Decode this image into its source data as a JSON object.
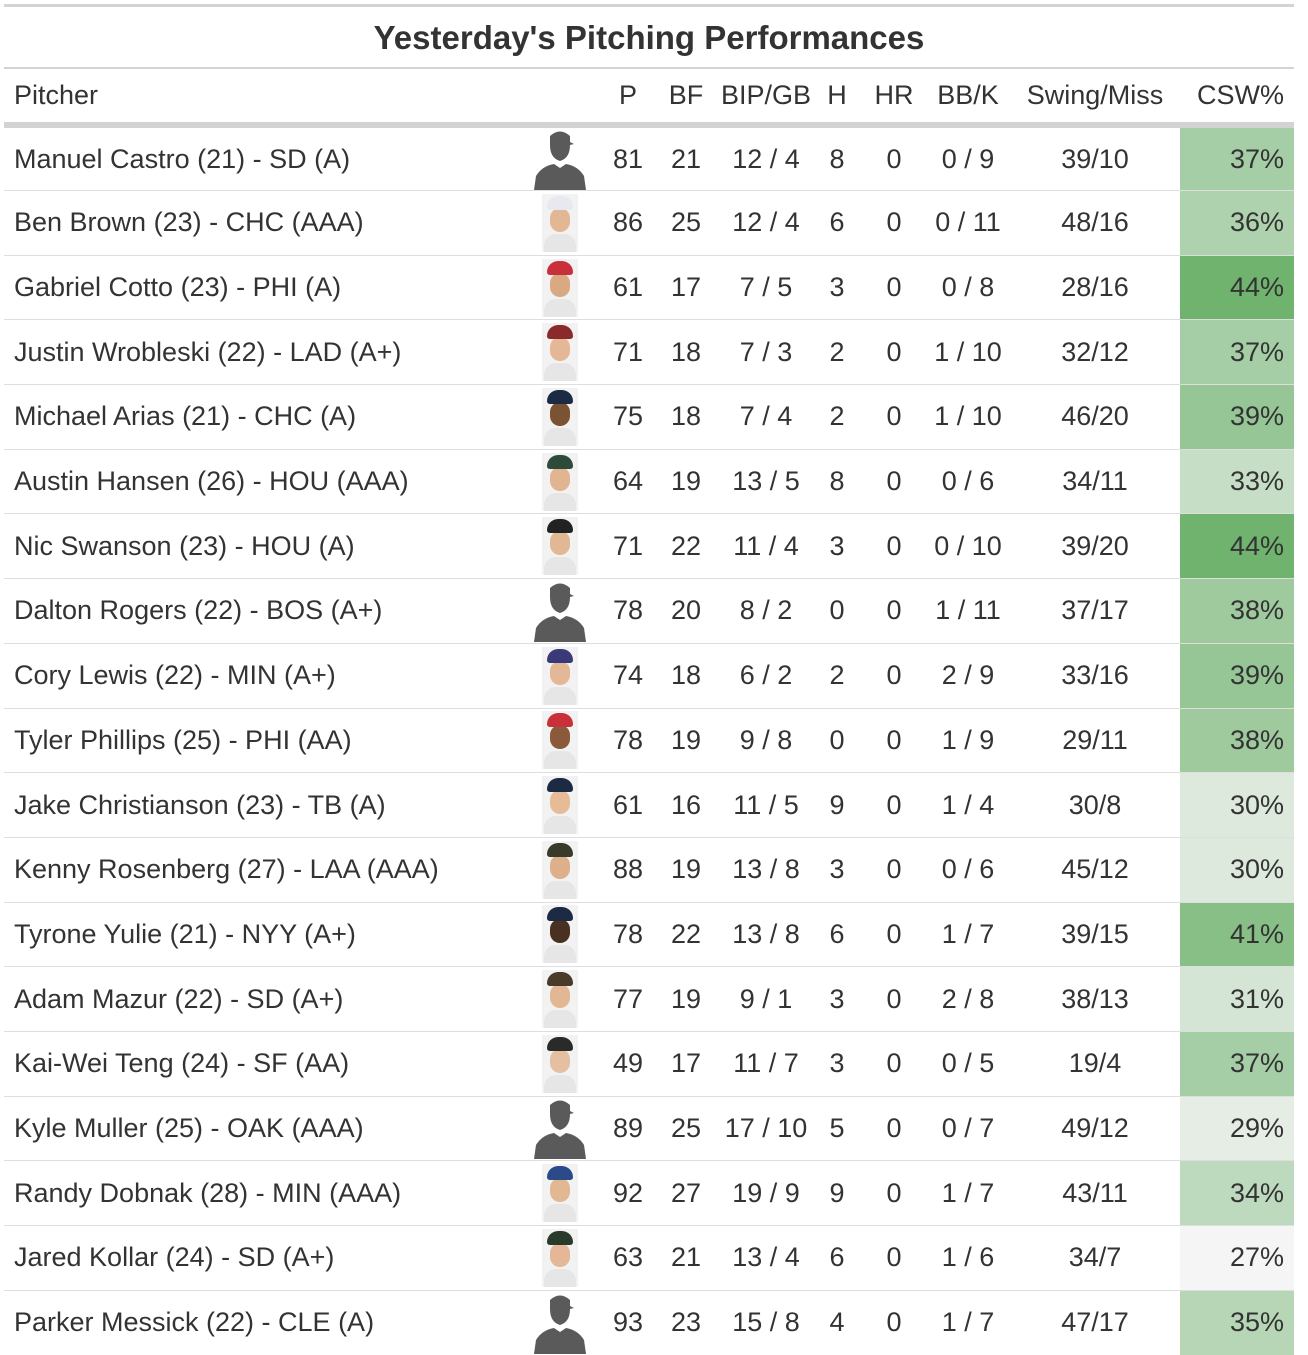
{
  "title": "Yesterday's Pitching Performances",
  "columns": [
    "Pitcher",
    "",
    "P",
    "BF",
    "BIP/GB",
    "H",
    "HR",
    "BB/K",
    "Swing/Miss",
    "CSW%"
  ],
  "colors": {
    "csw_low": "#f5f5f5",
    "csw_high": "#6fb36f"
  },
  "rows": [
    {
      "pitcher": "Manuel Castro (21) - SD (A)",
      "photo": "silhouette-icon",
      "p": "81",
      "bf": "21",
      "bipgb": "12 / 4",
      "h": "8",
      "hr": "0",
      "bbk": "0 / 9",
      "swm": "39/10",
      "csw": "37%",
      "csw_value": 37,
      "cap": "#333333",
      "skin": "#c8a27c"
    },
    {
      "pitcher": "Ben Brown (23) - CHC (AAA)",
      "photo": "headshot-icon",
      "p": "86",
      "bf": "25",
      "bipgb": "12 / 4",
      "h": "6",
      "hr": "0",
      "bbk": "0 / 11",
      "swm": "48/16",
      "csw": "36%",
      "csw_value": 36,
      "cap": "#e8e8f0",
      "skin": "#e2b894"
    },
    {
      "pitcher": "Gabriel Cotto (23) - PHI (A)",
      "photo": "headshot-icon",
      "p": "61",
      "bf": "17",
      "bipgb": "7 / 5",
      "h": "3",
      "hr": "0",
      "bbk": "0 / 8",
      "swm": "28/16",
      "csw": "44%",
      "csw_value": 44,
      "cap": "#c8303a",
      "skin": "#d9a982"
    },
    {
      "pitcher": "Justin Wrobleski (22) - LAD (A+)",
      "photo": "headshot-icon",
      "p": "71",
      "bf": "18",
      "bipgb": "7 / 3",
      "h": "2",
      "hr": "0",
      "bbk": "1 / 10",
      "swm": "32/12",
      "csw": "37%",
      "csw_value": 37,
      "cap": "#8a2a2a",
      "skin": "#e4b896"
    },
    {
      "pitcher": "Michael Arias (21) - CHC (A)",
      "photo": "headshot-icon",
      "p": "75",
      "bf": "18",
      "bipgb": "7 / 4",
      "h": "2",
      "hr": "0",
      "bbk": "1 / 10",
      "swm": "46/20",
      "csw": "39%",
      "csw_value": 39,
      "cap": "#1c2a44",
      "skin": "#7a5234"
    },
    {
      "pitcher": "Austin Hansen (26) - HOU (AAA)",
      "photo": "headshot-icon",
      "p": "64",
      "bf": "19",
      "bipgb": "13 / 5",
      "h": "8",
      "hr": "0",
      "bbk": "0 / 6",
      "swm": "34/11",
      "csw": "33%",
      "csw_value": 33,
      "cap": "#2d4a3a",
      "skin": "#e0b590"
    },
    {
      "pitcher": "Nic Swanson (23) - HOU (A)",
      "photo": "headshot-icon",
      "p": "71",
      "bf": "22",
      "bipgb": "11 / 4",
      "h": "3",
      "hr": "0",
      "bbk": "0 / 10",
      "swm": "39/20",
      "csw": "44%",
      "csw_value": 44,
      "cap": "#222222",
      "skin": "#e2b894"
    },
    {
      "pitcher": "Dalton Rogers (22) - BOS (A+)",
      "photo": "silhouette-icon",
      "p": "78",
      "bf": "20",
      "bipgb": "8 / 2",
      "h": "0",
      "hr": "0",
      "bbk": "1 / 11",
      "swm": "37/17",
      "csw": "38%",
      "csw_value": 38,
      "cap": "#333333",
      "skin": "#c8a27c"
    },
    {
      "pitcher": "Cory Lewis (22) - MIN (A+)",
      "photo": "headshot-icon",
      "p": "74",
      "bf": "18",
      "bipgb": "6 / 2",
      "h": "2",
      "hr": "0",
      "bbk": "2 / 9",
      "swm": "33/16",
      "csw": "39%",
      "csw_value": 39,
      "cap": "#3a3a7a",
      "skin": "#e4b896"
    },
    {
      "pitcher": "Tyler Phillips (25) - PHI (AA)",
      "photo": "headshot-icon",
      "p": "78",
      "bf": "19",
      "bipgb": "9 / 8",
      "h": "0",
      "hr": "0",
      "bbk": "1 / 9",
      "swm": "29/11",
      "csw": "38%",
      "csw_value": 38,
      "cap": "#c8303a",
      "skin": "#8a5a3a"
    },
    {
      "pitcher": "Jake Christianson (23) - TB (A)",
      "photo": "headshot-icon",
      "p": "61",
      "bf": "16",
      "bipgb": "11 / 5",
      "h": "9",
      "hr": "0",
      "bbk": "1 / 4",
      "swm": "30/8",
      "csw": "30%",
      "csw_value": 30,
      "cap": "#1c2a44",
      "skin": "#e6bc98"
    },
    {
      "pitcher": "Kenny Rosenberg (27) - LAA (AAA)",
      "photo": "headshot-icon",
      "p": "88",
      "bf": "19",
      "bipgb": "13 / 8",
      "h": "3",
      "hr": "0",
      "bbk": "0 / 6",
      "swm": "45/12",
      "csw": "30%",
      "csw_value": 30,
      "cap": "#3a3a2a",
      "skin": "#dcb08a"
    },
    {
      "pitcher": "Tyrone Yulie (21) - NYY (A+)",
      "photo": "headshot-icon",
      "p": "78",
      "bf": "22",
      "bipgb": "13 / 8",
      "h": "6",
      "hr": "0",
      "bbk": "1 / 7",
      "swm": "39/15",
      "csw": "41%",
      "csw_value": 41,
      "cap": "#1c2a44",
      "skin": "#4a3020"
    },
    {
      "pitcher": "Adam Mazur (22) - SD (A+)",
      "photo": "headshot-icon",
      "p": "77",
      "bf": "19",
      "bipgb": "9 / 1",
      "h": "3",
      "hr": "0",
      "bbk": "2 / 8",
      "swm": "38/13",
      "csw": "31%",
      "csw_value": 31,
      "cap": "#4a3a2a",
      "skin": "#e2b894"
    },
    {
      "pitcher": "Kai-Wei Teng (24) - SF (AA)",
      "photo": "headshot-icon",
      "p": "49",
      "bf": "17",
      "bipgb": "11 / 7",
      "h": "3",
      "hr": "0",
      "bbk": "0 / 5",
      "swm": "19/4",
      "csw": "37%",
      "csw_value": 37,
      "cap": "#2a2a2a",
      "skin": "#e4c0a0"
    },
    {
      "pitcher": "Kyle Muller (25) - OAK (AAA)",
      "photo": "silhouette-icon",
      "p": "89",
      "bf": "25",
      "bipgb": "17 / 10",
      "h": "5",
      "hr": "0",
      "bbk": "0 / 7",
      "swm": "49/12",
      "csw": "29%",
      "csw_value": 29,
      "cap": "#333333",
      "skin": "#c8a27c"
    },
    {
      "pitcher": "Randy Dobnak (28) - MIN (AAA)",
      "photo": "headshot-icon",
      "p": "92",
      "bf": "27",
      "bipgb": "19 / 9",
      "h": "9",
      "hr": "0",
      "bbk": "1 / 7",
      "swm": "43/11",
      "csw": "34%",
      "csw_value": 34,
      "cap": "#2a4a8a",
      "skin": "#e2b894"
    },
    {
      "pitcher": "Jared Kollar (24) - SD (A+)",
      "photo": "headshot-icon",
      "p": "63",
      "bf": "21",
      "bipgb": "13 / 4",
      "h": "6",
      "hr": "0",
      "bbk": "1 / 6",
      "swm": "34/7",
      "csw": "27%",
      "csw_value": 27,
      "cap": "#2a3a2a",
      "skin": "#e4b896"
    },
    {
      "pitcher": "Parker Messick (22) - CLE (A)",
      "photo": "silhouette-icon",
      "p": "93",
      "bf": "23",
      "bipgb": "15 / 8",
      "h": "4",
      "hr": "0",
      "bbk": "1 / 7",
      "swm": "47/17",
      "csw": "35%",
      "csw_value": 35,
      "cap": "#333333",
      "skin": "#c8a27c"
    }
  ]
}
